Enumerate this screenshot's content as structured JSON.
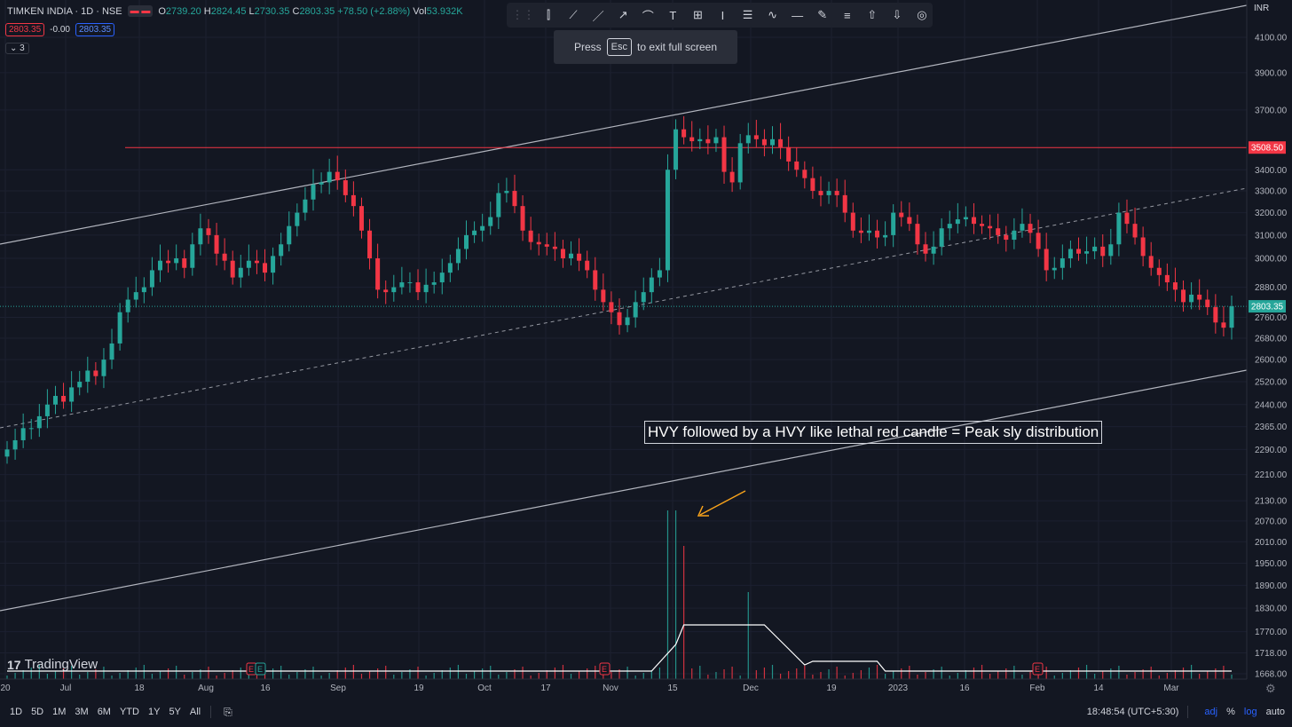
{
  "header": {
    "symbol": "TIMKEN INDIA · 1D · NSE",
    "o_label": "O",
    "o": "2739.20",
    "h_label": "H",
    "h": "2824.45",
    "l_label": "L",
    "l": "2730.35",
    "c_label": "C",
    "c": "2803.35",
    "change": "+78.50 (+2.88%)",
    "vol_label": "Vol",
    "vol": "53.932K"
  },
  "row2": {
    "bid": "2803.35",
    "spread": "-0.00",
    "ask": "2803.35"
  },
  "row3": {
    "indicators": "⌄ 3"
  },
  "toast": {
    "press": "Press",
    "key": "Esc",
    "rest": "to exit full screen"
  },
  "annotation": "HVY followed by a HVY like lethal red candle = Peak sly distribution",
  "logo": {
    "mark": "17",
    "name": "TradingView"
  },
  "currency": "INR",
  "ranges": [
    "1D",
    "5D",
    "1M",
    "3M",
    "6M",
    "YTD",
    "1Y",
    "5Y",
    "All"
  ],
  "status": {
    "time": "18:48:54 (UTC+5:30)",
    "adj": "adj",
    "pct": "%",
    "log": "log",
    "auto": "auto"
  },
  "colors": {
    "up": "#26a69a",
    "down": "#f23645",
    "bg": "#131722",
    "resistance": "#f23645",
    "arrow": "#f7a21b"
  },
  "toolbar_icons": [
    "grip-icon",
    "candles-icon",
    "trend-line-icon",
    "ray-icon",
    "arrow-line-icon",
    "curve-icon",
    "text-icon",
    "crosshair-icon",
    "text-cursor-icon",
    "fib-icon",
    "path-icon",
    "hline-icon",
    "brush-icon",
    "menu-icon",
    "arrow-up-icon",
    "arrow-down-icon",
    "target-icon"
  ],
  "chart_data": {
    "type": "candlestick",
    "scale": "log",
    "yticks": [
      4100,
      3900,
      3700,
      3400,
      3300,
      3200,
      3100,
      3000,
      2880,
      2760,
      2680,
      2600,
      2520,
      2440,
      2365,
      2290,
      2210,
      2130,
      2070,
      2010,
      1950,
      1890,
      1830,
      1770,
      1718,
      1668
    ],
    "xticks": [
      "20",
      "Jul",
      "18",
      "Aug",
      "16",
      "Sep",
      "19",
      "Oct",
      "17",
      "Nov",
      "15",
      "Dec",
      "19",
      "2023",
      "16",
      "Feb",
      "14",
      "Mar"
    ],
    "last_price": "2803.35",
    "resistance_level": "3508.50",
    "earnings_markers": [
      "E",
      "E",
      "E",
      "E"
    ],
    "close": [
      2290,
      2320,
      2360,
      2360,
      2400,
      2440,
      2470,
      2450,
      2500,
      2520,
      2560,
      2540,
      2600,
      2660,
      2780,
      2830,
      2860,
      2880,
      2950,
      2990,
      2980,
      3000,
      2960,
      3060,
      3130,
      3100,
      3020,
      2990,
      2920,
      2960,
      2990,
      2980,
      2940,
      3010,
      3060,
      3140,
      3200,
      3260,
      3330,
      3340,
      3390,
      3350,
      3280,
      3230,
      3120,
      3000,
      2870,
      2860,
      2880,
      2900,
      2900,
      2860,
      2890,
      2900,
      2940,
      2980,
      3040,
      3100,
      3120,
      3140,
      3180,
      3290,
      3300,
      3230,
      3120,
      3070,
      3060,
      3050,
      3040,
      3000,
      3020,
      2990,
      2950,
      2870,
      2820,
      2780,
      2730,
      2760,
      2820,
      2860,
      2920,
      2950,
      3400,
      3600,
      3560,
      3540,
      3550,
      3530,
      3560,
      3390,
      3340,
      3530,
      3570,
      3550,
      3520,
      3550,
      3510,
      3440,
      3400,
      3360,
      3300,
      3280,
      3300,
      3280,
      3200,
      3120,
      3110,
      3120,
      3090,
      3100,
      3200,
      3180,
      3150,
      3060,
      3020,
      3050,
      3130,
      3150,
      3170,
      3180,
      3150,
      3140,
      3130,
      3100,
      3080,
      3120,
      3150,
      3110,
      3040,
      2950,
      2960,
      3000,
      3040,
      3020,
      3030,
      3050,
      3010,
      3060,
      3200,
      3150,
      3090,
      3010,
      2960,
      2930,
      2900,
      2870,
      2820,
      2850,
      2830,
      2800,
      2740,
      2720,
      2803.35
    ],
    "volume_highlights": [
      {
        "index": 82,
        "color": "up"
      },
      {
        "index": 83,
        "color": "down"
      }
    ],
    "volume_ma_plateau": [
      1800,
      1810
    ]
  }
}
